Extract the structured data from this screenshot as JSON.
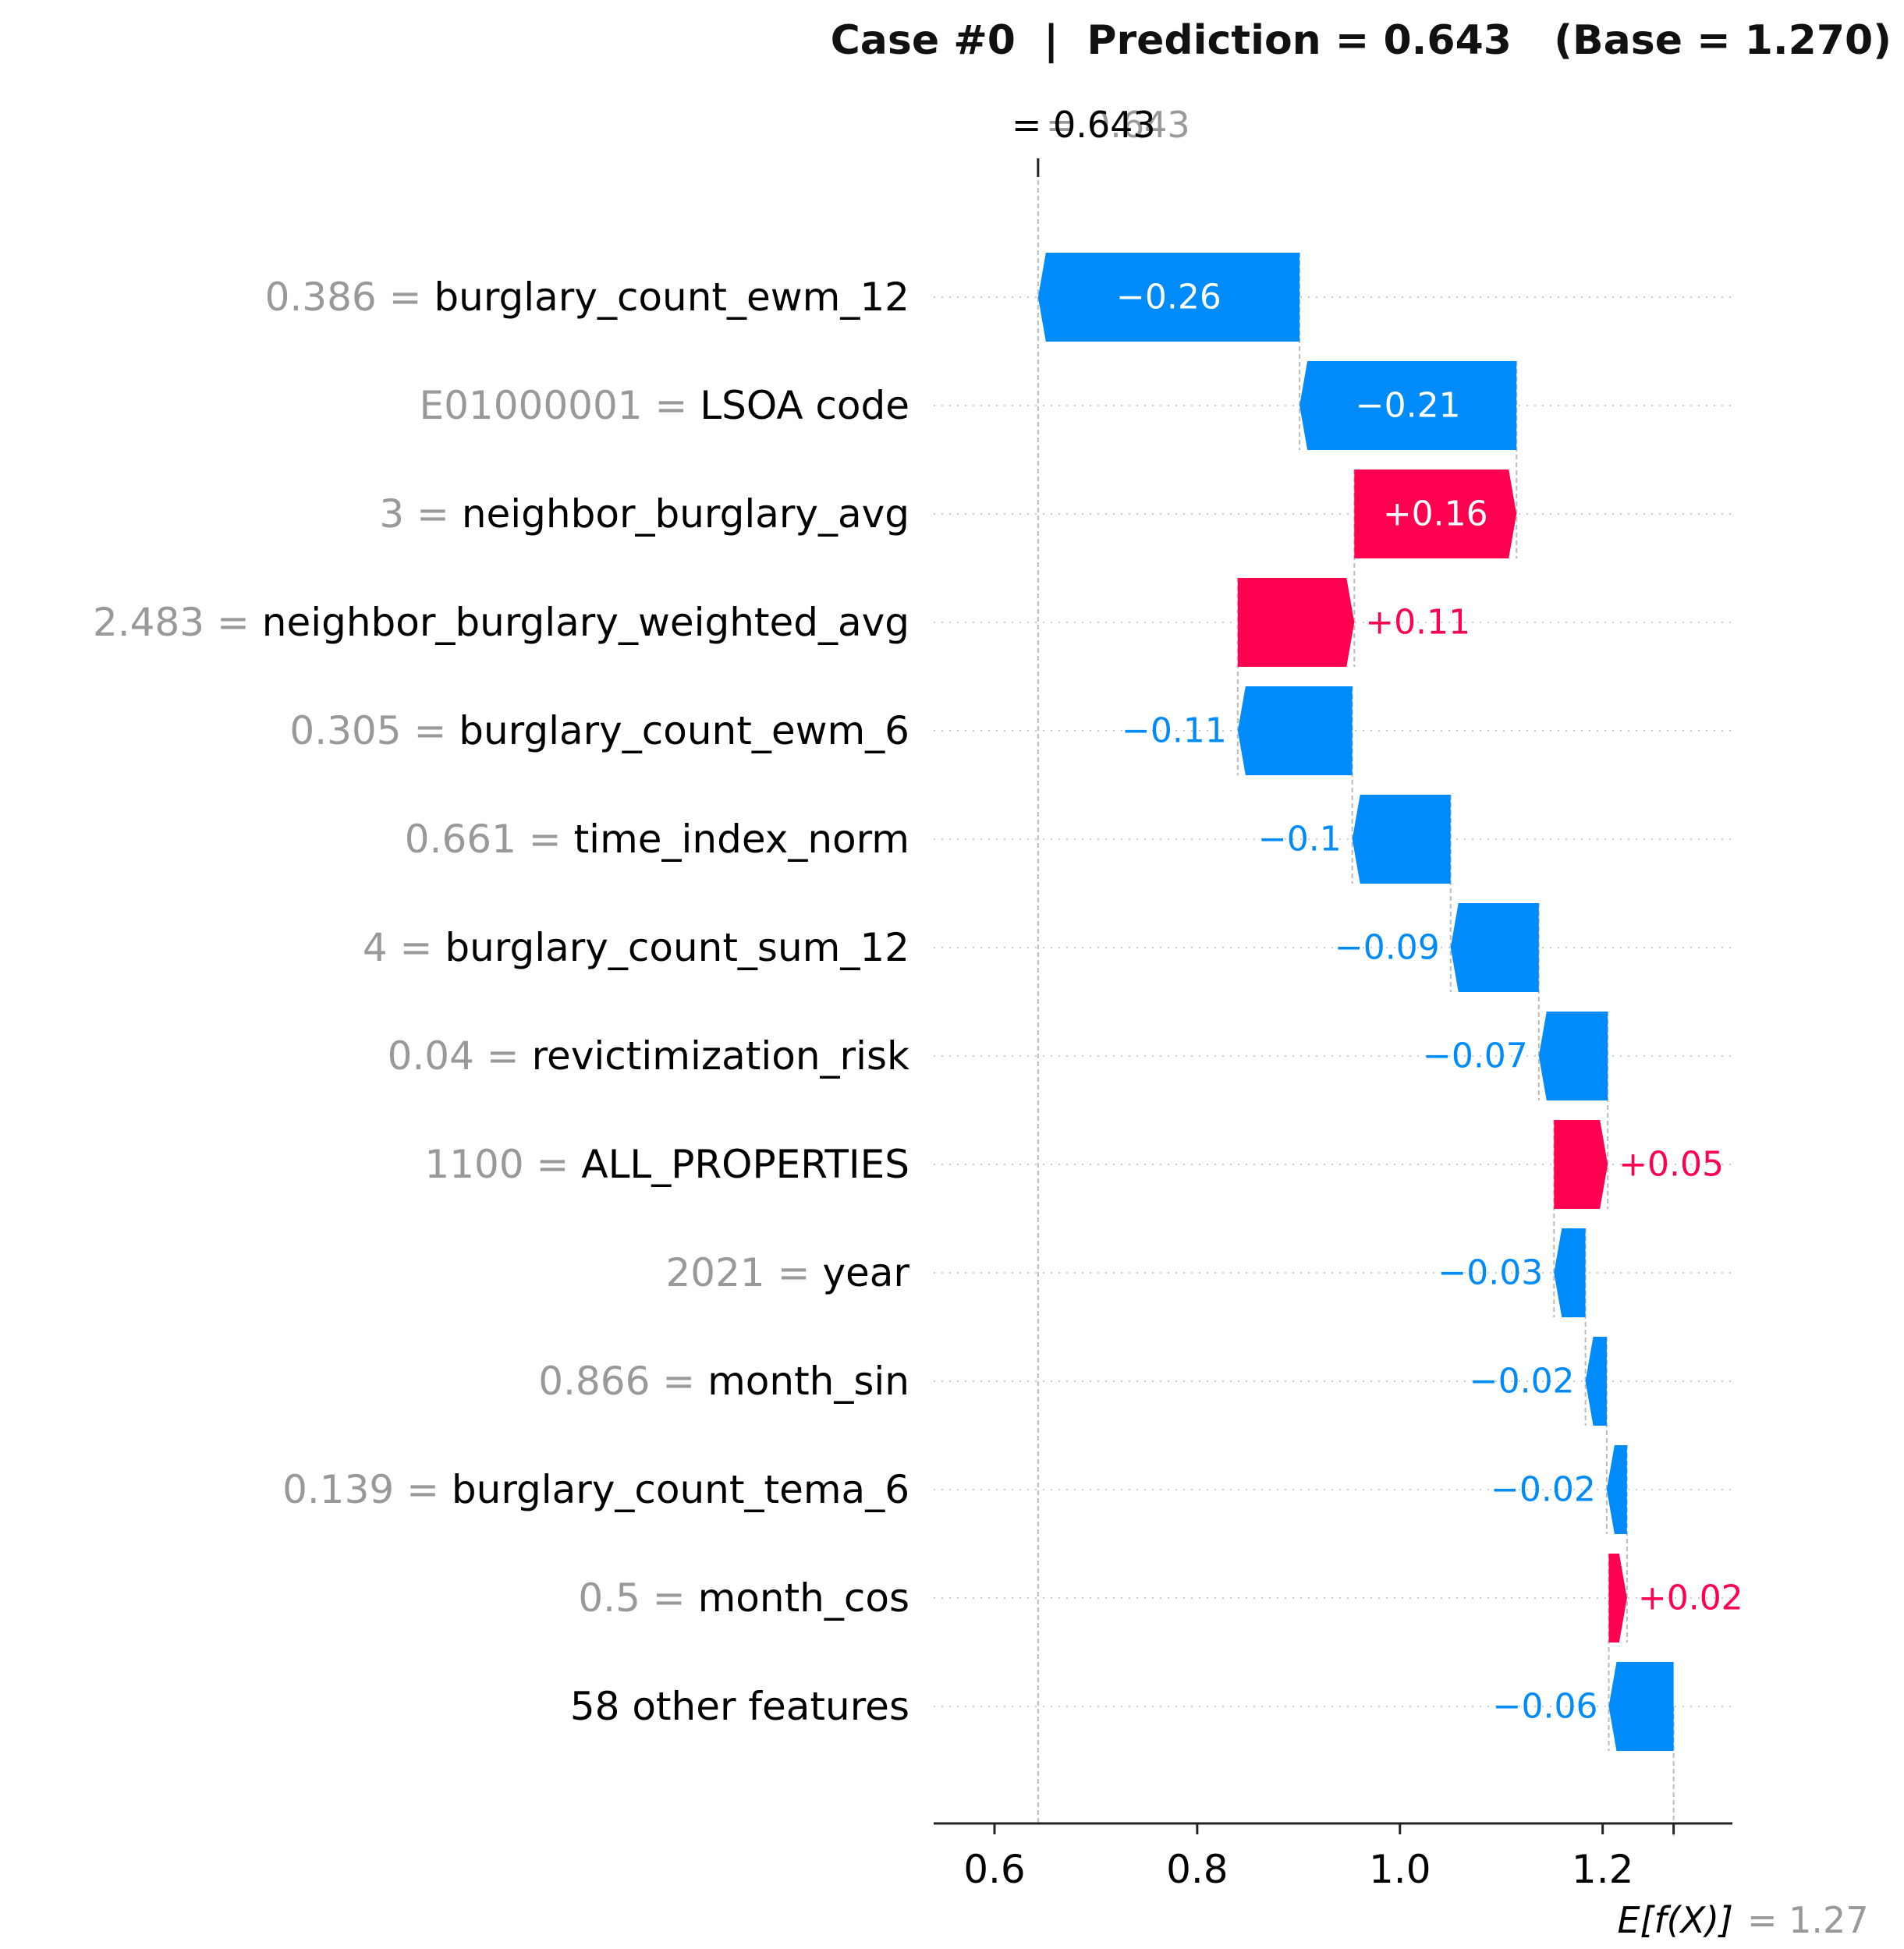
{
  "chart_data": {
    "type": "waterfall",
    "title": "Case #0  |  Prediction = 0.643   (Base = 1.270)",
    "prediction_label": "0.643",
    "prediction_ghost_label": "0.643",
    "base_label": "1.27",
    "x_ticks": [
      0.6,
      0.8,
      1.0,
      1.2
    ],
    "x_tick_labels": [
      "0.6",
      "0.8",
      "1.0",
      "1.2"
    ],
    "x_range": [
      0.54,
      1.328
    ],
    "base_value": 1.27,
    "prediction": 0.643,
    "features": [
      {
        "feature_value": "0.386",
        "name": "burglary_count_ewm_12",
        "start": 0.901,
        "end": 0.643,
        "label": "−0.26",
        "sign": "neg"
      },
      {
        "feature_value": "E01000001",
        "name": "LSOA code",
        "start": 1.115,
        "end": 0.901,
        "label": "−0.21",
        "sign": "neg"
      },
      {
        "feature_value": "3",
        "name": "neighbor_burglary_avg",
        "start": 0.955,
        "end": 1.115,
        "label": "+0.16",
        "sign": "pos"
      },
      {
        "feature_value": "2.483",
        "name": "neighbor_burglary_weighted_avg",
        "start": 0.84,
        "end": 0.955,
        "label": "+0.11",
        "sign": "pos"
      },
      {
        "feature_value": "0.305",
        "name": "burglary_count_ewm_6",
        "start": 0.953,
        "end": 0.84,
        "label": "−0.11",
        "sign": "neg"
      },
      {
        "feature_value": "0.661",
        "name": "time_index_norm",
        "start": 1.05,
        "end": 0.953,
        "label": "−0.1",
        "sign": "neg"
      },
      {
        "feature_value": "4",
        "name": "burglary_count_sum_12",
        "start": 1.137,
        "end": 1.05,
        "label": "−0.09",
        "sign": "neg"
      },
      {
        "feature_value": "0.04",
        "name": "revictimization_risk",
        "start": 1.205,
        "end": 1.137,
        "label": "−0.07",
        "sign": "neg"
      },
      {
        "feature_value": "1100",
        "name": "ALL_PROPERTIES",
        "start": 1.152,
        "end": 1.205,
        "label": "+0.05",
        "sign": "pos"
      },
      {
        "feature_value": "2021",
        "name": "year",
        "start": 1.183,
        "end": 1.152,
        "label": "−0.03",
        "sign": "neg"
      },
      {
        "feature_value": "0.866",
        "name": "month_sin",
        "start": 1.204,
        "end": 1.183,
        "label": "−0.02",
        "sign": "neg"
      },
      {
        "feature_value": "0.139",
        "name": "burglary_count_tema_6",
        "start": 1.224,
        "end": 1.204,
        "label": "−0.02",
        "sign": "neg"
      },
      {
        "feature_value": "0.5",
        "name": "month_cos",
        "start": 1.206,
        "end": 1.224,
        "label": "+0.02",
        "sign": "pos"
      },
      {
        "feature_value": "",
        "name": "58 other features",
        "start": 1.27,
        "end": 1.206,
        "label": "−0.06",
        "sign": "neg"
      }
    ],
    "colors": {
      "positive": "#ff0051",
      "negative": "#008bfb",
      "muted": "#999999",
      "text": "#000000",
      "white": "#ffffff"
    }
  }
}
